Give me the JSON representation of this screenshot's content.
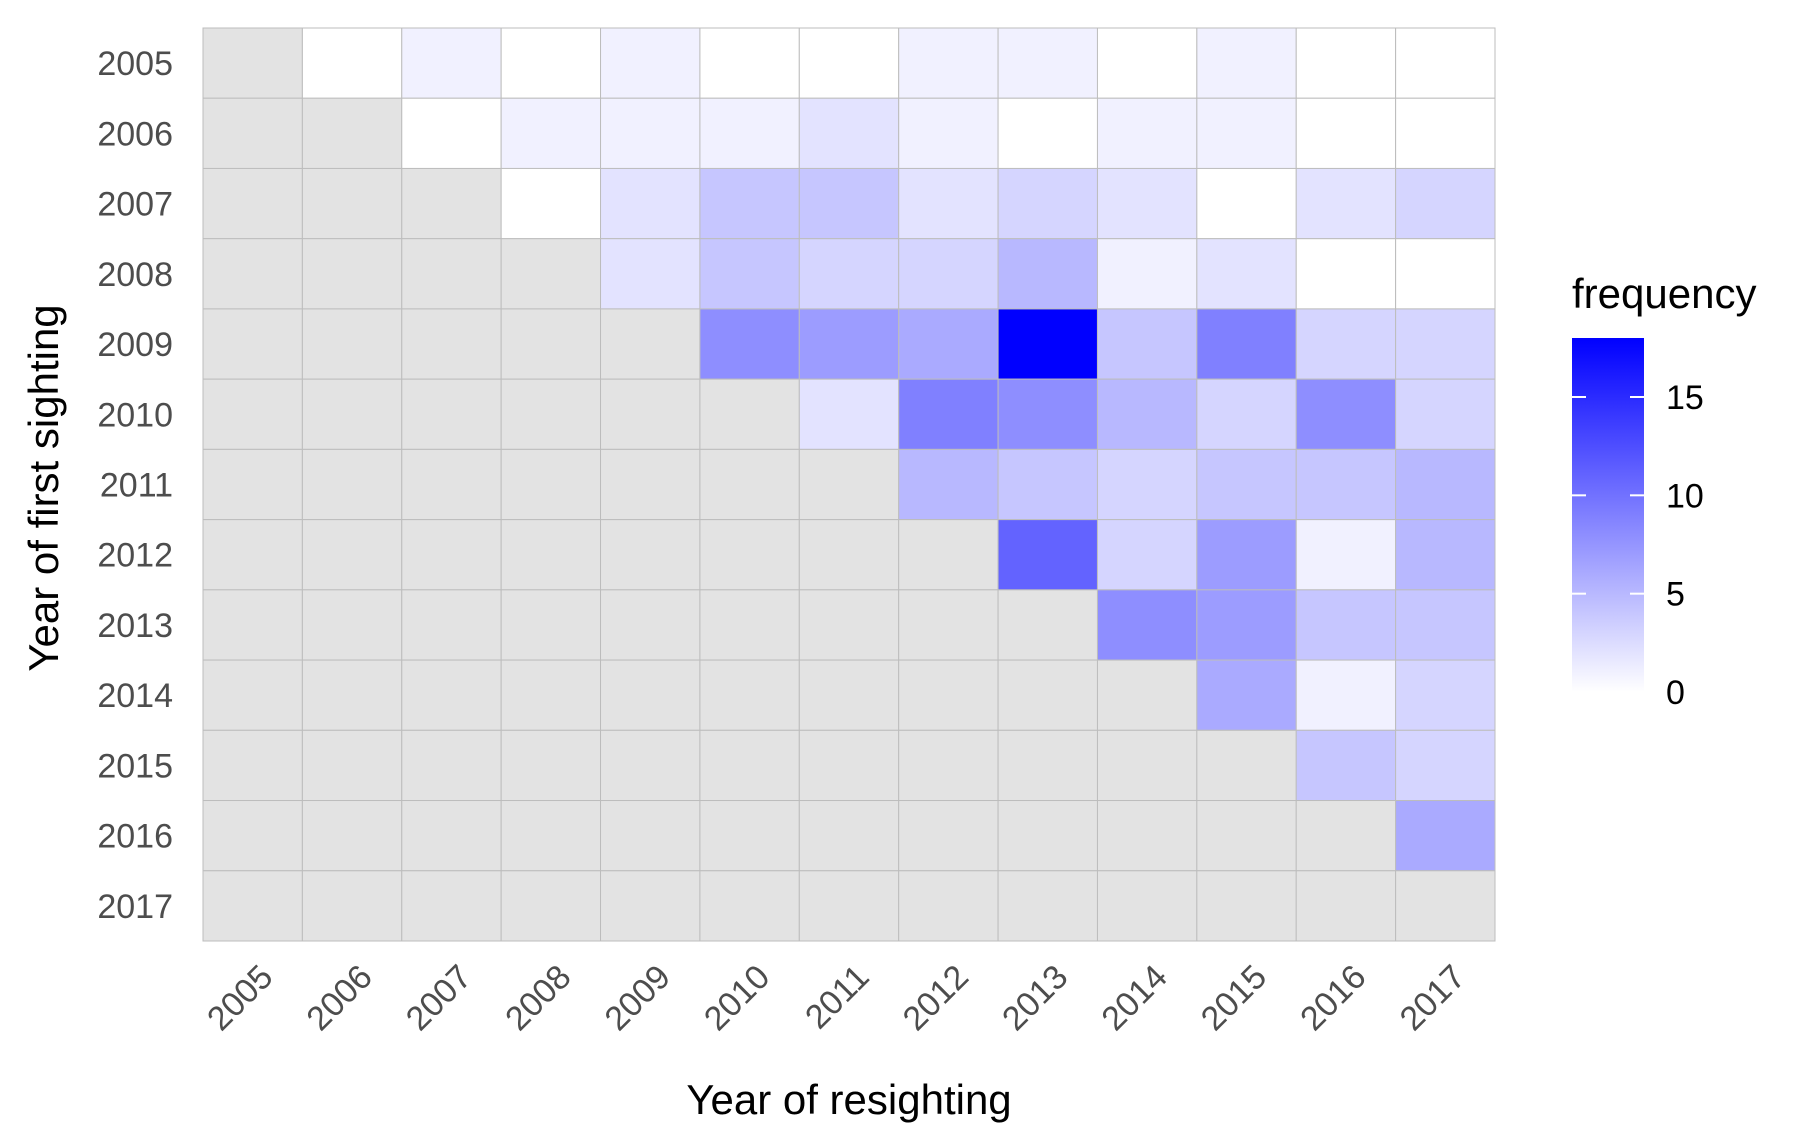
{
  "chart_data": {
    "type": "heatmap",
    "x_label": "Year of resighting",
    "y_label": "Year of first sighting",
    "x_categories": [
      "2005",
      "2006",
      "2007",
      "2008",
      "2009",
      "2010",
      "2011",
      "2012",
      "2013",
      "2014",
      "2015",
      "2016",
      "2017"
    ],
    "y_categories": [
      "2005",
      "2006",
      "2007",
      "2008",
      "2009",
      "2010",
      "2011",
      "2012",
      "2013",
      "2014",
      "2015",
      "2016",
      "2017"
    ],
    "legend": {
      "title": "frequency",
      "position": "right",
      "ticks": [
        "0",
        "5",
        "10",
        "15"
      ],
      "min": 0,
      "max": 18
    },
    "colors": {
      "low": "#ffffff",
      "high": "#0000ff",
      "na": "#e3e3e3",
      "grid_line": "#bdbdbd"
    },
    "values": [
      [
        null,
        0,
        1,
        0,
        1,
        0,
        0,
        1,
        1,
        0,
        1,
        0,
        0
      ],
      [
        null,
        null,
        0,
        1,
        1,
        1,
        2,
        1,
        0,
        1,
        1,
        0,
        0
      ],
      [
        null,
        null,
        null,
        0,
        2,
        4,
        4,
        2,
        3,
        2,
        0,
        2,
        3
      ],
      [
        null,
        null,
        null,
        null,
        2,
        4,
        3,
        3,
        5,
        1,
        2,
        0,
        0
      ],
      [
        null,
        null,
        null,
        null,
        null,
        8,
        7,
        6,
        18,
        4,
        9,
        3,
        3
      ],
      [
        null,
        null,
        null,
        null,
        null,
        null,
        2,
        9,
        8,
        5,
        3,
        8,
        3
      ],
      [
        null,
        null,
        null,
        null,
        null,
        null,
        null,
        5,
        4,
        3,
        4,
        4,
        5
      ],
      [
        null,
        null,
        null,
        null,
        null,
        null,
        null,
        null,
        11,
        3,
        7,
        1,
        5
      ],
      [
        null,
        null,
        null,
        null,
        null,
        null,
        null,
        null,
        null,
        8,
        7,
        4,
        4
      ],
      [
        null,
        null,
        null,
        null,
        null,
        null,
        null,
        null,
        null,
        null,
        6,
        1,
        3
      ],
      [
        null,
        null,
        null,
        null,
        null,
        null,
        null,
        null,
        null,
        null,
        null,
        4,
        3
      ],
      [
        null,
        null,
        null,
        null,
        null,
        null,
        null,
        null,
        null,
        null,
        null,
        null,
        6
      ],
      [
        null,
        null,
        null,
        null,
        null,
        null,
        null,
        null,
        null,
        null,
        null,
        null,
        null
      ]
    ]
  }
}
